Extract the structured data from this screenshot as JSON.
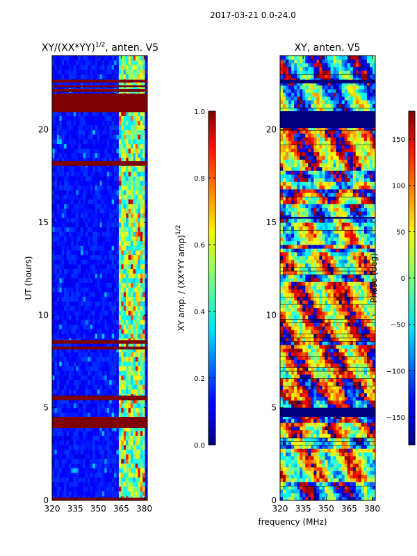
{
  "figure_title": "2017-03-21 0.0-24.0",
  "colors": {
    "jet_low": "#00007f",
    "jet_mid": "#7fff7f",
    "jet_high": "#7f0000",
    "frame": "#000000"
  },
  "chart_data": [
    {
      "type": "heatmap",
      "name": "amplitude-ratio",
      "title_prefix": "XY/(XX*YY)",
      "title_exponent": "1/2",
      "title_suffix": ", anten. V5",
      "xlabel": "",
      "ylabel": "UT (hours)",
      "xlim": [
        320,
        382
      ],
      "ylim": [
        0,
        24
      ],
      "xticks": [
        "320",
        "335",
        "350",
        "365",
        "380"
      ],
      "xtick_values": [
        320,
        335,
        350,
        365,
        380
      ],
      "yticks": [
        "0",
        "5",
        "10",
        "15",
        "20"
      ],
      "ytick_values": [
        0,
        5,
        10,
        15,
        20
      ],
      "colorbar": {
        "label_prefix": "XY amp. / (XX*YY amp)",
        "label_exponent": "1/2",
        "range": [
          0.0,
          1.0
        ],
        "ticks": [
          "0.0",
          "0.2",
          "0.4",
          "0.6",
          "0.8",
          "1.0"
        ],
        "tick_values": [
          0.0,
          0.2,
          0.4,
          0.6,
          0.8,
          1.0
        ]
      },
      "flagged_bands_ut": [
        [
          0.0,
          0.15
        ],
        [
          3.9,
          4.5
        ],
        [
          5.4,
          5.65
        ],
        [
          8.15,
          8.3
        ],
        [
          8.45,
          8.65
        ],
        [
          18.05,
          18.3
        ],
        [
          20.95,
          21.95
        ],
        [
          22.05,
          22.2
        ],
        [
          22.3,
          22.4
        ],
        [
          22.55,
          22.7
        ]
      ],
      "high_response_freq_mhz": [
        363,
        381
      ]
    },
    {
      "type": "heatmap",
      "name": "phase",
      "title": "XY, anten. V5",
      "xlabel": "frequency (MHz)",
      "ylabel": "",
      "xlim": [
        320,
        382
      ],
      "ylim": [
        0,
        24
      ],
      "xticks": [
        "320",
        "335",
        "350",
        "365",
        "380"
      ],
      "xtick_values": [
        320,
        335,
        350,
        365,
        380
      ],
      "yticks": [
        "0",
        "5",
        "10",
        "15",
        "20"
      ],
      "ytick_values": [
        0,
        5,
        10,
        15,
        20
      ],
      "colorbar": {
        "label": "Phase (deg)",
        "range": [
          -180,
          180
        ],
        "ticks": [
          "−150",
          "−100",
          "−50",
          "0",
          "50",
          "100",
          "150"
        ],
        "tick_values": [
          -150,
          -100,
          -50,
          0,
          50,
          100,
          150
        ]
      },
      "flagged_bands_ut": [
        [
          4.5,
          5.0
        ],
        [
          20.1,
          21.0
        ],
        [
          22.5,
          22.7
        ],
        [
          15.2,
          15.3
        ]
      ]
    }
  ]
}
